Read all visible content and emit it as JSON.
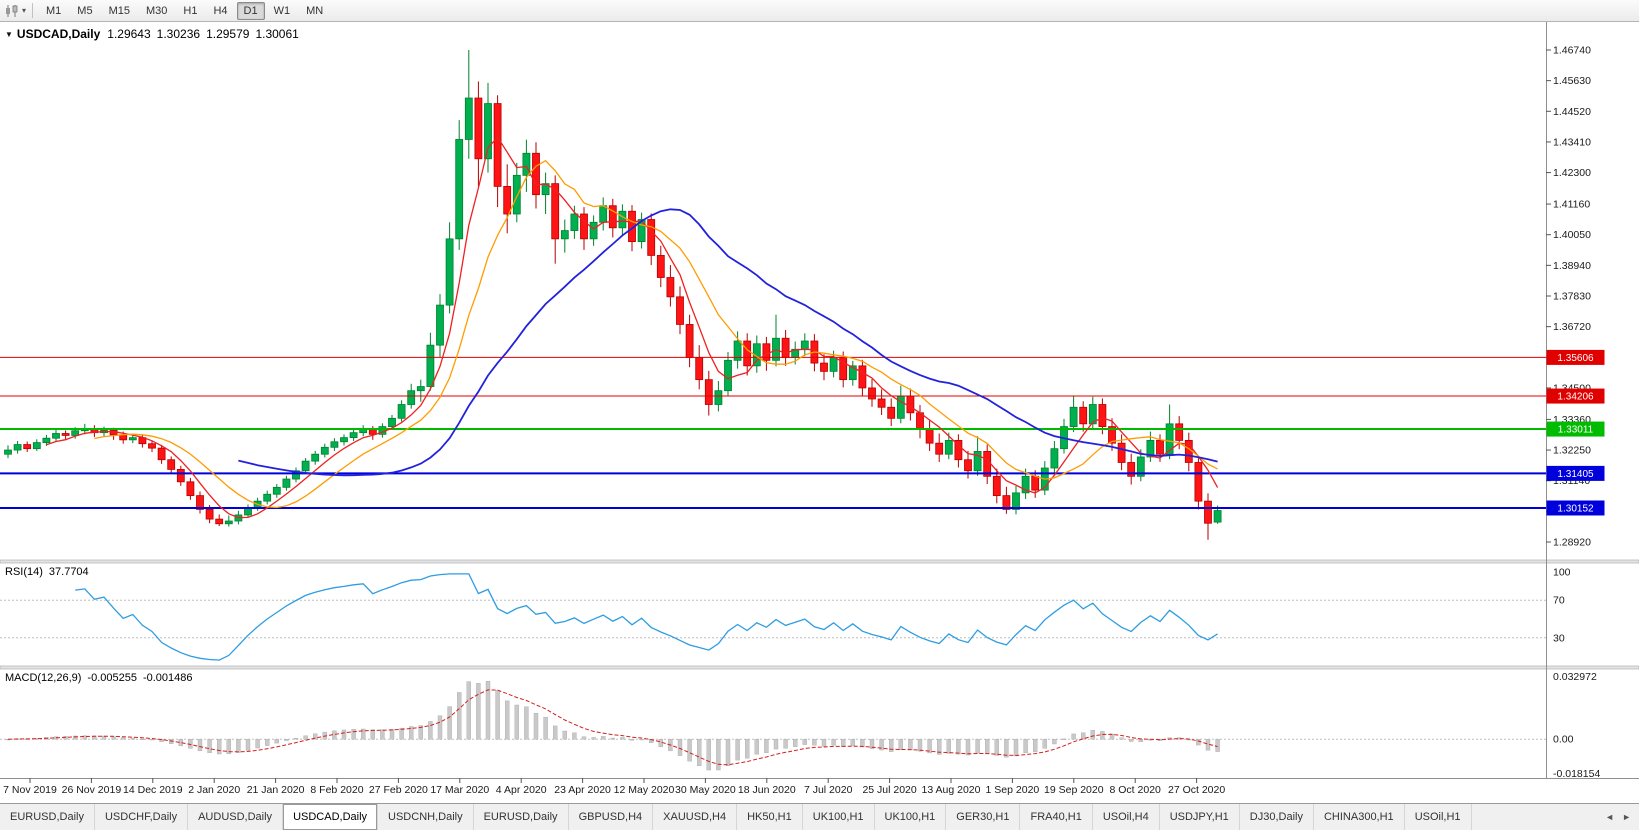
{
  "toolbar": {
    "chart_type_icon": "candlestick-chart-icon",
    "dropdown_icon": "▾",
    "timeframes": [
      "M1",
      "M5",
      "M15",
      "M30",
      "H1",
      "H4",
      "D1",
      "W1",
      "MN"
    ],
    "active": "D1"
  },
  "header": {
    "collapse_icon": "▼"
  },
  "tab_bar": {
    "active_index": 3,
    "scroll_left": "◄",
    "scroll_right": "►",
    "tabs": [
      {
        "label": "EURUSD,Daily"
      },
      {
        "label": "USDCHF,Daily"
      },
      {
        "label": "AUDUSD,Daily"
      },
      {
        "label": "USDCAD,Daily"
      },
      {
        "label": "USDCNH,Daily"
      },
      {
        "label": "EURUSD,Daily"
      },
      {
        "label": "GBPUSD,H4"
      },
      {
        "label": "XAUUSD,H4"
      },
      {
        "label": "HK50,H1"
      },
      {
        "label": "UK100,H1"
      },
      {
        "label": "UK100,H1"
      },
      {
        "label": "GER30,H1"
      },
      {
        "label": "FRA40,H1"
      },
      {
        "label": "USOil,H4"
      },
      {
        "label": "USDJPY,H1"
      },
      {
        "label": "DJ30,Daily"
      },
      {
        "label": "CHINA300,H1"
      },
      {
        "label": "USOil,H1"
      }
    ]
  },
  "chart_data": {
    "type": "candlestick",
    "symbol_period": "USDCAD,Daily",
    "ohlc_display": {
      "open": "1.29643",
      "high": "1.30236",
      "low": "1.29579",
      "close": "1.30061"
    },
    "up_color": "#00b050",
    "down_color": "#fe1414",
    "ma_line_colors": [
      "#f02020",
      "#ff9c00",
      "#2222dd"
    ],
    "y_axis_ticks": [
      "1.46740",
      "1.45630",
      "1.44520",
      "1.43410",
      "1.42300",
      "1.41160",
      "1.40050",
      "1.38940",
      "1.37830",
      "1.36720",
      "1.35600",
      "1.34500",
      "1.33360",
      "1.32250",
      "1.31140",
      "1.30030",
      "1.28920"
    ],
    "x_axis_dates": [
      "7 Nov 2019",
      "26 Nov 2019",
      "14 Dec 2019",
      "2 Jan 2020",
      "21 Jan 2020",
      "8 Feb 2020",
      "27 Feb 2020",
      "17 Mar 2020",
      "4 Apr 2020",
      "23 Apr 2020",
      "12 May 2020",
      "30 May 2020",
      "18 Jun 2020",
      "7 Jul 2020",
      "25 Jul 2020",
      "13 Aug 2020",
      "1 Sep 2020",
      "19 Sep 2020",
      "8 Oct 2020",
      "27 Oct 2020"
    ],
    "horizontal_levels": [
      {
        "label": "1.35606",
        "price": 1.35606,
        "color": "#e00000",
        "line_width": 1
      },
      {
        "label": "1.34206",
        "price": 1.34206,
        "color": "#e00000",
        "line_width": 1
      },
      {
        "label": "1.33011",
        "price": 1.33011,
        "color": "#00bb00",
        "line_width": 2
      },
      {
        "label": "1.31405",
        "price": 1.31405,
        "color": "#0000dd",
        "line_width": 2
      },
      {
        "label": "1.30152",
        "price": 1.30152,
        "color": "#0000dd",
        "line_width": 2
      }
    ],
    "rsi": {
      "label": "RSI(14)",
      "value": "37.7704",
      "axis_labels": [
        "100",
        "70",
        "30"
      ],
      "level_lines": [
        70,
        30
      ],
      "line_color": "#2e9de2"
    },
    "macd": {
      "label": "MACD(12,26,9)",
      "value_main": "-0.005255",
      "value_signal": "-0.001486",
      "axis_labels": [
        "0.032972",
        "0.00",
        "-0.018154"
      ],
      "axis_max": 0.032972,
      "axis_min": -0.018154,
      "histogram_color": "#c9c9c9",
      "signal_color": "#d42020"
    },
    "candles_ohlc": [
      [
        1.321,
        1.3242,
        1.3196,
        1.3225
      ],
      [
        1.3225,
        1.3258,
        1.3212,
        1.3245
      ],
      [
        1.3245,
        1.3256,
        1.3218,
        1.323
      ],
      [
        1.323,
        1.3264,
        1.3222,
        1.3252
      ],
      [
        1.3252,
        1.328,
        1.324,
        1.3268
      ],
      [
        1.3268,
        1.3298,
        1.3255,
        1.3285
      ],
      [
        1.3285,
        1.3296,
        1.3262,
        1.3278
      ],
      [
        1.3278,
        1.3308,
        1.3266,
        1.3295
      ],
      [
        1.3295,
        1.332,
        1.3282,
        1.3302
      ],
      [
        1.3302,
        1.3315,
        1.3272,
        1.3288
      ],
      [
        1.3288,
        1.331,
        1.3275,
        1.3296
      ],
      [
        1.3296,
        1.3306,
        1.3262,
        1.328
      ],
      [
        1.328,
        1.3292,
        1.3248,
        1.3262
      ],
      [
        1.3262,
        1.3284,
        1.325,
        1.327
      ],
      [
        1.327,
        1.3278,
        1.3234,
        1.3248
      ],
      [
        1.3248,
        1.326,
        1.3218,
        1.3232
      ],
      [
        1.3232,
        1.3244,
        1.3175,
        1.319
      ],
      [
        1.319,
        1.3202,
        1.314,
        1.3155
      ],
      [
        1.3155,
        1.3168,
        1.3095,
        1.311
      ],
      [
        1.311,
        1.3124,
        1.3045,
        1.306
      ],
      [
        1.306,
        1.3075,
        1.2995,
        1.301
      ],
      [
        1.301,
        1.3026,
        1.296,
        1.2975
      ],
      [
        1.2975,
        1.2992,
        1.295,
        1.2958
      ],
      [
        1.2958,
        1.2988,
        1.2948,
        1.2968
      ],
      [
        1.2968,
        1.3005,
        1.2956,
        1.299
      ],
      [
        1.299,
        1.3028,
        1.298,
        1.3015
      ],
      [
        1.3015,
        1.3052,
        1.3005,
        1.304
      ],
      [
        1.304,
        1.3078,
        1.3028,
        1.3065
      ],
      [
        1.3065,
        1.3102,
        1.3052,
        1.309
      ],
      [
        1.309,
        1.3132,
        1.3078,
        1.312
      ],
      [
        1.312,
        1.3162,
        1.3108,
        1.315
      ],
      [
        1.315,
        1.3196,
        1.3138,
        1.3185
      ],
      [
        1.3185,
        1.3222,
        1.3172,
        1.321
      ],
      [
        1.321,
        1.3248,
        1.3198,
        1.3235
      ],
      [
        1.3235,
        1.3268,
        1.3222,
        1.3255
      ],
      [
        1.3255,
        1.3282,
        1.3242,
        1.327
      ],
      [
        1.327,
        1.33,
        1.3258,
        1.3288
      ],
      [
        1.3288,
        1.3315,
        1.3275,
        1.33
      ],
      [
        1.33,
        1.3312,
        1.3262,
        1.3282
      ],
      [
        1.3282,
        1.3322,
        1.327,
        1.331
      ],
      [
        1.331,
        1.3352,
        1.3298,
        1.334
      ],
      [
        1.334,
        1.3405,
        1.3328,
        1.339
      ],
      [
        1.339,
        1.3465,
        1.3375,
        1.344
      ],
      [
        1.344,
        1.348,
        1.34,
        1.3455
      ],
      [
        1.3455,
        1.365,
        1.344,
        1.3605
      ],
      [
        1.3605,
        1.379,
        1.356,
        1.375
      ],
      [
        1.375,
        1.405,
        1.372,
        1.399
      ],
      [
        1.399,
        1.442,
        1.395,
        1.435
      ],
      [
        1.435,
        1.4674,
        1.428,
        1.45
      ],
      [
        1.45,
        1.456,
        1.418,
        1.428
      ],
      [
        1.428,
        1.4555,
        1.423,
        1.448
      ],
      [
        1.448,
        1.451,
        1.4105,
        1.418
      ],
      [
        1.418,
        1.426,
        1.401,
        1.408
      ],
      [
        1.408,
        1.4265,
        1.405,
        1.422
      ],
      [
        1.422,
        1.4349,
        1.416,
        1.43
      ],
      [
        1.43,
        1.434,
        1.41,
        1.415
      ],
      [
        1.415,
        1.423,
        1.408,
        1.419
      ],
      [
        1.419,
        1.422,
        1.39,
        1.399
      ],
      [
        1.399,
        1.406,
        1.394,
        1.402
      ],
      [
        1.402,
        1.411,
        1.399,
        1.408
      ],
      [
        1.408,
        1.4105,
        1.395,
        1.399
      ],
      [
        1.399,
        1.4075,
        1.3965,
        1.405
      ],
      [
        1.405,
        1.414,
        1.402,
        1.411
      ],
      [
        1.411,
        1.4135,
        1.3995,
        1.403
      ],
      [
        1.403,
        1.4115,
        1.4005,
        1.409
      ],
      [
        1.409,
        1.4112,
        1.3945,
        1.398
      ],
      [
        1.398,
        1.4085,
        1.3955,
        1.406
      ],
      [
        1.406,
        1.4082,
        1.3895,
        1.393
      ],
      [
        1.393,
        1.3965,
        1.3815,
        1.385
      ],
      [
        1.385,
        1.3895,
        1.3745,
        1.378
      ],
      [
        1.378,
        1.3818,
        1.3645,
        1.368
      ],
      [
        1.368,
        1.3715,
        1.3525,
        1.356
      ],
      [
        1.356,
        1.3605,
        1.3445,
        1.348
      ],
      [
        1.348,
        1.3512,
        1.335,
        1.339
      ],
      [
        1.339,
        1.3475,
        1.3365,
        1.344
      ],
      [
        1.344,
        1.358,
        1.342,
        1.355
      ],
      [
        1.355,
        1.3655,
        1.352,
        1.362
      ],
      [
        1.362,
        1.3648,
        1.3495,
        1.353
      ],
      [
        1.353,
        1.364,
        1.3505,
        1.361
      ],
      [
        1.361,
        1.3635,
        1.3512,
        1.355
      ],
      [
        1.355,
        1.3715,
        1.3528,
        1.363
      ],
      [
        1.363,
        1.366,
        1.353,
        1.356
      ],
      [
        1.356,
        1.3618,
        1.3535,
        1.359
      ],
      [
        1.359,
        1.3648,
        1.3565,
        1.362
      ],
      [
        1.362,
        1.3645,
        1.351,
        1.354
      ],
      [
        1.354,
        1.3572,
        1.3478,
        1.351
      ],
      [
        1.351,
        1.3585,
        1.3488,
        1.356
      ],
      [
        1.356,
        1.3582,
        1.3452,
        1.348
      ],
      [
        1.348,
        1.3548,
        1.3458,
        1.353
      ],
      [
        1.353,
        1.3552,
        1.3422,
        1.345
      ],
      [
        1.345,
        1.3482,
        1.3382,
        1.341
      ],
      [
        1.341,
        1.3445,
        1.3352,
        1.338
      ],
      [
        1.338,
        1.3412,
        1.3312,
        1.334
      ],
      [
        1.334,
        1.3458,
        1.3322,
        1.342
      ],
      [
        1.342,
        1.3448,
        1.3332,
        1.336
      ],
      [
        1.336,
        1.3388,
        1.3268,
        1.33
      ],
      [
        1.33,
        1.3332,
        1.3222,
        1.325
      ],
      [
        1.325,
        1.3285,
        1.3182,
        1.321
      ],
      [
        1.321,
        1.3288,
        1.3192,
        1.326
      ],
      [
        1.326,
        1.3282,
        1.3162,
        1.319
      ],
      [
        1.319,
        1.3222,
        1.3122,
        1.315
      ],
      [
        1.315,
        1.3275,
        1.3132,
        1.322
      ],
      [
        1.322,
        1.3245,
        1.3102,
        1.313
      ],
      [
        1.313,
        1.3158,
        1.3032,
        1.306
      ],
      [
        1.306,
        1.3092,
        1.2994,
        1.301
      ],
      [
        1.301,
        1.3095,
        1.2992,
        1.307
      ],
      [
        1.307,
        1.3158,
        1.3048,
        1.313
      ],
      [
        1.313,
        1.3152,
        1.3052,
        1.308
      ],
      [
        1.308,
        1.3185,
        1.3062,
        1.316
      ],
      [
        1.316,
        1.3258,
        1.314,
        1.323
      ],
      [
        1.323,
        1.3338,
        1.3212,
        1.331
      ],
      [
        1.331,
        1.342,
        1.329,
        1.338
      ],
      [
        1.338,
        1.3402,
        1.3292,
        1.332
      ],
      [
        1.332,
        1.3418,
        1.33,
        1.339
      ],
      [
        1.339,
        1.3412,
        1.3282,
        1.331
      ],
      [
        1.331,
        1.334,
        1.3222,
        1.325
      ],
      [
        1.325,
        1.3282,
        1.3152,
        1.318
      ],
      [
        1.318,
        1.3212,
        1.31,
        1.313
      ],
      [
        1.313,
        1.3228,
        1.3112,
        1.32
      ],
      [
        1.32,
        1.3292,
        1.3182,
        1.326
      ],
      [
        1.326,
        1.3282,
        1.3182,
        1.321
      ],
      [
        1.321,
        1.339,
        1.3192,
        1.332
      ],
      [
        1.332,
        1.3348,
        1.3228,
        1.326
      ],
      [
        1.326,
        1.3288,
        1.3148,
        1.318
      ],
      [
        1.318,
        1.3205,
        1.301,
        1.304
      ],
      [
        1.304,
        1.3068,
        1.29,
        1.296
      ],
      [
        1.2964,
        1.3024,
        1.2958,
        1.3006
      ]
    ]
  }
}
